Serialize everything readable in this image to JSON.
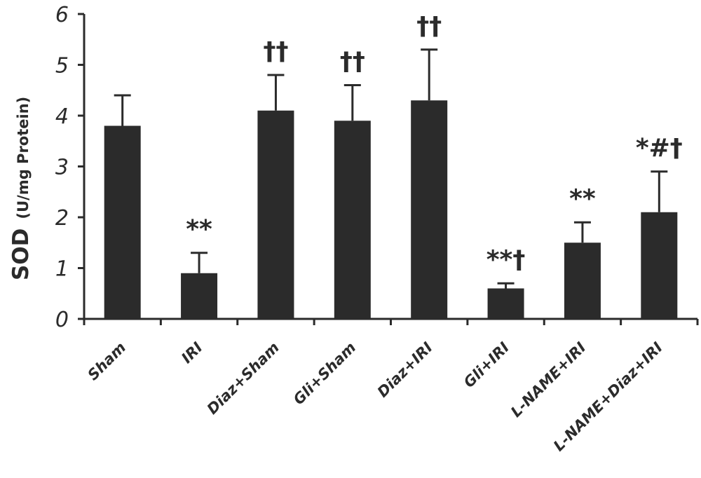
{
  "chart_data": {
    "type": "bar",
    "title": "",
    "xlabel": "",
    "ylabel": "SOD",
    "ylabel_unit": "(U/mg Protein)",
    "ylim": [
      0,
      6
    ],
    "yticks": [
      "0",
      "1",
      "2",
      "3",
      "4",
      "5",
      "6"
    ],
    "grid": false,
    "bar_color": "#2b2b2b",
    "categories": [
      "Sham",
      "IRI",
      "Diaz+Sham",
      "Gli+Sham",
      "Diaz+IRI",
      "Gli+IRI",
      "L-NAME+IRI",
      "L-NAME+Diaz+IRI"
    ],
    "values": [
      3.8,
      0.9,
      4.1,
      3.9,
      4.3,
      0.6,
      1.5,
      2.1
    ],
    "errors": [
      0.6,
      0.4,
      0.7,
      0.7,
      1.0,
      0.1,
      0.4,
      0.8
    ],
    "annotations": [
      "",
      "**",
      "††",
      "††",
      "††",
      "**†",
      "**",
      "*#†"
    ]
  }
}
